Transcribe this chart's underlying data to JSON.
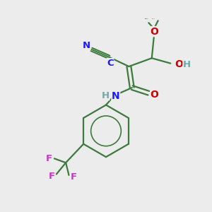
{
  "background_color": "#ececec",
  "bond_color": "#3d7a3d",
  "colors": {
    "N": "#1a1aff",
    "O": "#cc0000",
    "F": "#cc33cc",
    "H": "#6aacac",
    "C_label": "#1a1aff"
  },
  "figsize": [
    3.0,
    3.0
  ],
  "dpi": 100,
  "xlim": [
    0,
    10
  ],
  "ylim": [
    0,
    10
  ]
}
